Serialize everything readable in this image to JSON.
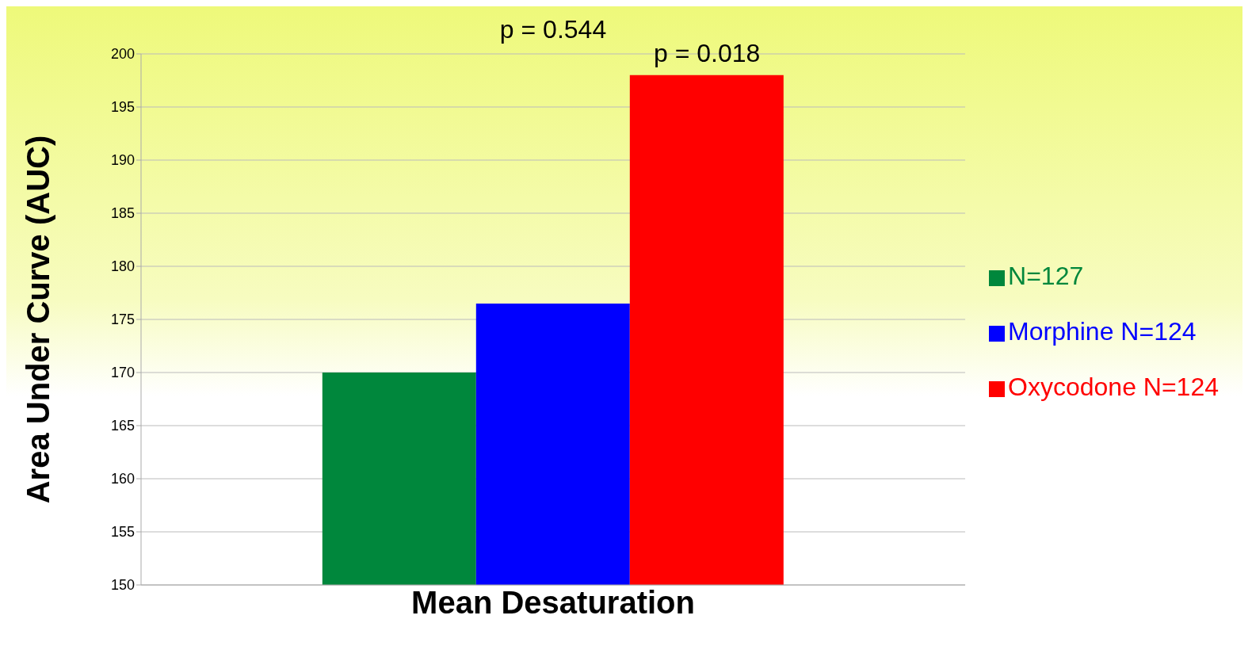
{
  "chart_data": {
    "type": "bar",
    "ylabel": "Area Under Curve (AUC)",
    "categories": [
      "Mean Desaturation"
    ],
    "series": [
      {
        "name": "N=127",
        "color": "#00873c",
        "values": [
          170
        ]
      },
      {
        "name": "Morphine N=124",
        "color": "#0000ff",
        "values": [
          176.5
        ]
      },
      {
        "name": "Oxycodone N=124",
        "color": "#ff0000",
        "values": [
          198
        ]
      }
    ],
    "ylim": [
      150,
      200
    ],
    "yticks": [
      150,
      155,
      160,
      165,
      170,
      175,
      180,
      185,
      190,
      195,
      200
    ],
    "grid": "y",
    "legend": "right",
    "annotations": [
      "p = 0.544",
      "p = 0.018"
    ]
  }
}
